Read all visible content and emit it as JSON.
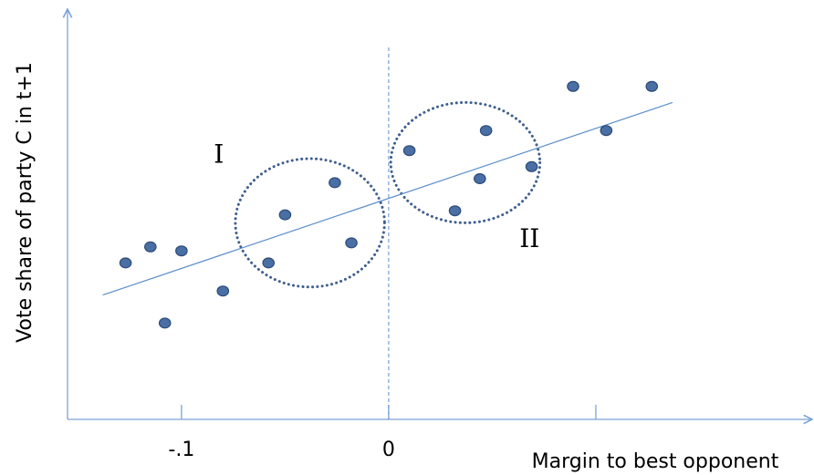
{
  "chart_data": {
    "type": "scatter",
    "xlabel": "Margin to best opponent",
    "ylabel": "Vote share of party C in t+1",
    "x_ticks": [
      {
        "value": -0.1,
        "label": "-.1"
      },
      {
        "value": 0,
        "label": "0"
      },
      {
        "value": 0.1,
        "label": ""
      }
    ],
    "xlim": [
      -0.155,
      0.2
    ],
    "ylim": [
      0,
      1
    ],
    "cutoff_x": 0,
    "points": [
      {
        "x": -0.127,
        "y": 0.39
      },
      {
        "x": -0.115,
        "y": 0.43
      },
      {
        "x": -0.108,
        "y": 0.24
      },
      {
        "x": -0.1,
        "y": 0.42
      },
      {
        "x": -0.08,
        "y": 0.32
      },
      {
        "x": -0.058,
        "y": 0.39
      },
      {
        "x": -0.05,
        "y": 0.51
      },
      {
        "x": -0.026,
        "y": 0.59
      },
      {
        "x": -0.018,
        "y": 0.44
      },
      {
        "x": 0.01,
        "y": 0.67
      },
      {
        "x": 0.032,
        "y": 0.52
      },
      {
        "x": 0.044,
        "y": 0.6
      },
      {
        "x": 0.047,
        "y": 0.72
      },
      {
        "x": 0.069,
        "y": 0.63
      },
      {
        "x": 0.089,
        "y": 0.83
      },
      {
        "x": 0.105,
        "y": 0.72
      },
      {
        "x": 0.127,
        "y": 0.83
      }
    ],
    "trend_line": {
      "x": [
        -0.138,
        0.137
      ],
      "y": [
        0.31,
        0.79
      ]
    },
    "regions": [
      {
        "label": "I",
        "cx": -0.038,
        "cy": 0.49,
        "rx": 0.036,
        "ry": 0.16,
        "label_x": -0.082,
        "label_y": 0.64
      },
      {
        "label": "II",
        "cx": 0.037,
        "cy": 0.64,
        "rx": 0.036,
        "ry": 0.15,
        "label_x": 0.068,
        "label_y": 0.43
      }
    ],
    "colors": {
      "point_fill": "#4a6fa5",
      "point_stroke": "#2d4a78",
      "trend_line": "#5b8ecc",
      "axis": "#7ba3d6",
      "cutoff": "#5b8ecc",
      "region": "#3f5f8f"
    }
  }
}
